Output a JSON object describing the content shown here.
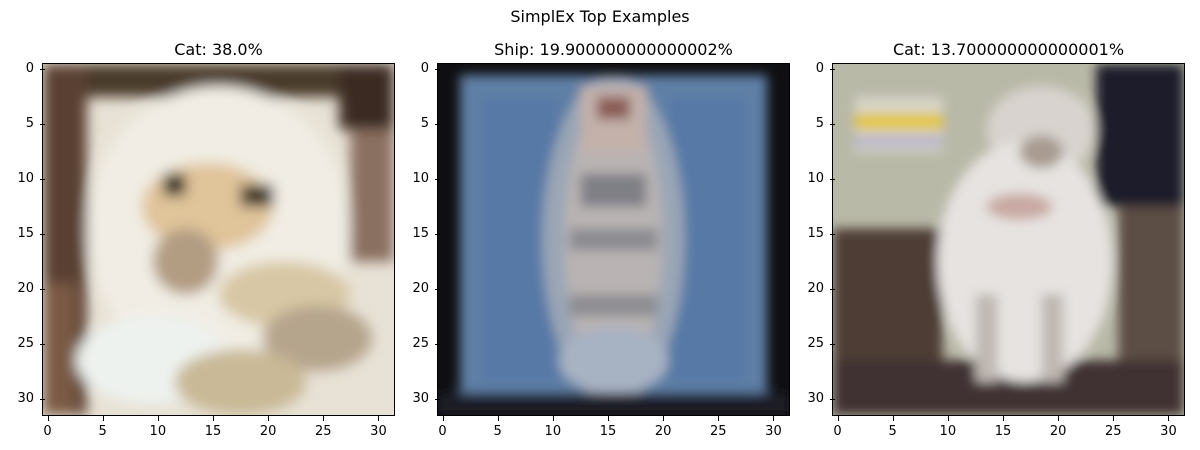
{
  "figure": {
    "title": "SimplEx Top Examples"
  },
  "panels": [
    {
      "title": "Cat: 38.0%",
      "scene": "cat-closeup"
    },
    {
      "title": "Ship: 19.900000000000002%",
      "scene": "ship-topdown"
    },
    {
      "title": "Cat: 13.700000000000001%",
      "scene": "cat-sitting"
    }
  ],
  "axes": {
    "ticks": [
      "0",
      "5",
      "10",
      "15",
      "20",
      "25",
      "30"
    ]
  },
  "colors": {
    "tick": "#000000",
    "frame": "#000000"
  }
}
